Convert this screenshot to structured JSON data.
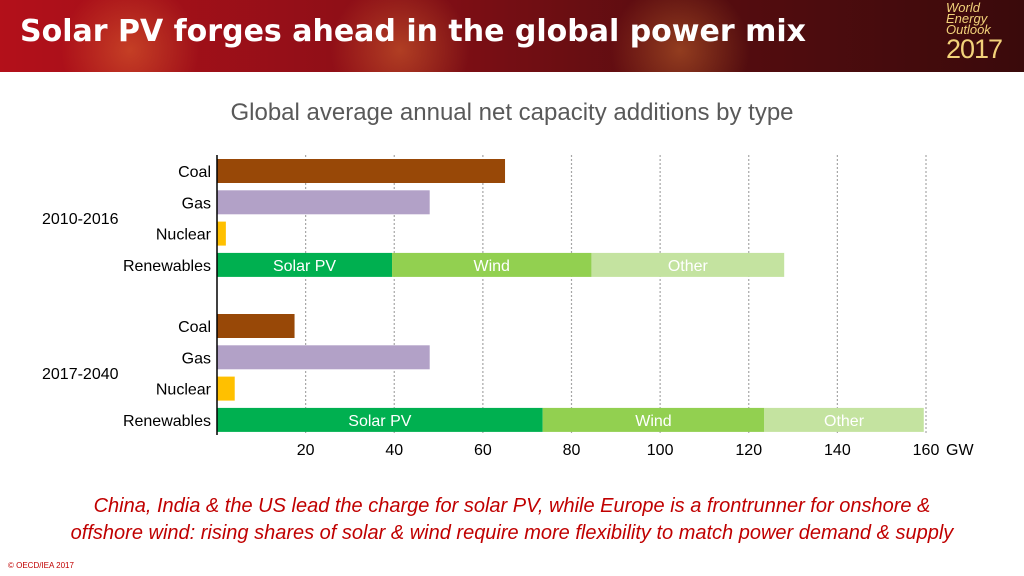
{
  "header": {
    "title": "Solar PV forges ahead in the global power mix",
    "logo": {
      "line1": "World",
      "line2": "Energy",
      "line3": "Outlook",
      "year": "2017"
    }
  },
  "chart_data": {
    "type": "bar",
    "orientation": "horizontal",
    "stacked": true,
    "title": "Global average annual net capacity additions by type",
    "unit": "GW",
    "xlim": [
      0,
      160
    ],
    "x_ticks": [
      20,
      40,
      60,
      80,
      100,
      120,
      140,
      160
    ],
    "grid": "dotted vertical",
    "groups": [
      {
        "label": "2010-2016",
        "bars": [
          {
            "category": "Coal",
            "segments": [
              {
                "name": "Coal",
                "value": 65,
                "color": "#984807",
                "label": ""
              }
            ]
          },
          {
            "category": "Gas",
            "segments": [
              {
                "name": "Gas",
                "value": 48,
                "color": "#b2a1c7",
                "label": ""
              }
            ]
          },
          {
            "category": "Nuclear",
            "segments": [
              {
                "name": "Nuclear",
                "value": 2,
                "color": "#ffc000",
                "label": ""
              }
            ]
          },
          {
            "category": "Renewables",
            "segments": [
              {
                "name": "Solar PV",
                "value": 39.5,
                "color": "#00b050",
                "label": "Solar PV"
              },
              {
                "name": "Wind",
                "value": 45,
                "color": "#92d050",
                "label": "Wind"
              },
              {
                "name": "Other",
                "value": 43.5,
                "color": "#c4e3a0",
                "label": "Other"
              }
            ]
          }
        ]
      },
      {
        "label": "2017-2040",
        "bars": [
          {
            "category": "Coal",
            "segments": [
              {
                "name": "Coal",
                "value": 17.5,
                "color": "#984807",
                "label": ""
              }
            ]
          },
          {
            "category": "Gas",
            "segments": [
              {
                "name": "Gas",
                "value": 48,
                "color": "#b2a1c7",
                "label": ""
              }
            ]
          },
          {
            "category": "Nuclear",
            "segments": [
              {
                "name": "Nuclear",
                "value": 4,
                "color": "#ffc000",
                "label": ""
              }
            ]
          },
          {
            "category": "Renewables",
            "segments": [
              {
                "name": "Solar PV",
                "value": 73.5,
                "color": "#00b050",
                "label": "Solar PV"
              },
              {
                "name": "Wind",
                "value": 50,
                "color": "#92d050",
                "label": "Wind"
              },
              {
                "name": "Other",
                "value": 36,
                "color": "#c4e3a0",
                "label": "Other"
              }
            ]
          }
        ]
      }
    ]
  },
  "footnote": {
    "line1": "China, India & the US lead the charge for solar PV, while Europe is a frontrunner for onshore &",
    "line2": "offshore wind: rising shares of solar & wind require more flexibility to match power demand & supply"
  },
  "copyright": "© OECD/IEA 2017"
}
